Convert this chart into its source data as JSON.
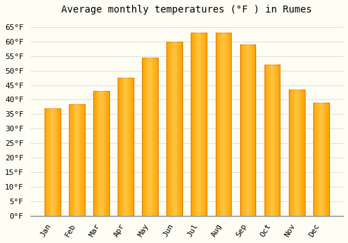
{
  "title": "Average monthly temperatures (°F ) in Rumes",
  "months": [
    "Jan",
    "Feb",
    "Mar",
    "Apr",
    "May",
    "Jun",
    "Jul",
    "Aug",
    "Sep",
    "Oct",
    "Nov",
    "Dec"
  ],
  "values": [
    37.0,
    38.5,
    43.0,
    47.5,
    54.5,
    60.0,
    63.0,
    63.0,
    59.0,
    52.0,
    43.5,
    39.0
  ],
  "bar_color": "#FFA500",
  "bar_edge_color": "#E08000",
  "background_color": "#FFFEF5",
  "grid_color": "#DDDDDD",
  "yticks": [
    0,
    5,
    10,
    15,
    20,
    25,
    30,
    35,
    40,
    45,
    50,
    55,
    60,
    65
  ],
  "ylim": [
    0,
    68
  ],
  "title_fontsize": 10,
  "tick_fontsize": 8,
  "title_font_family": "monospace",
  "tick_font_family": "monospace"
}
